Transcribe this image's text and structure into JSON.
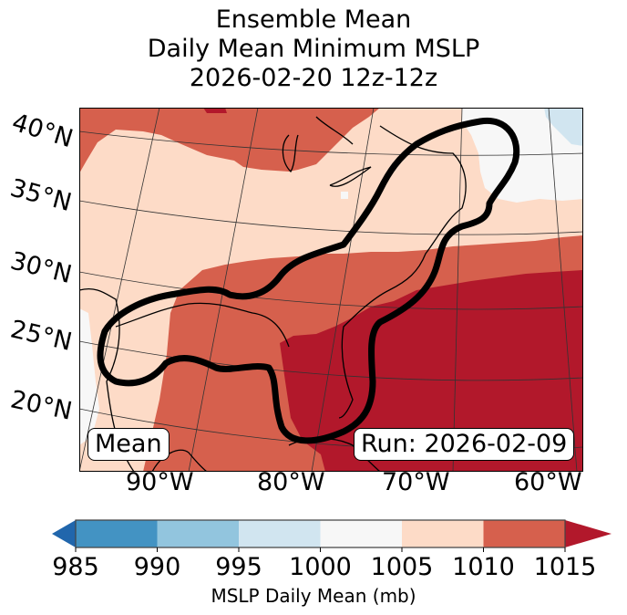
{
  "title": {
    "line1": "Ensemble Mean",
    "line2": "Daily Mean Minimum MSLP",
    "line3": "2026-02-20 12z-12z"
  },
  "map": {
    "lat_labels": [
      "40°N",
      "35°N",
      "30°N",
      "25°N",
      "20°N"
    ],
    "lon_labels": [
      "90°W",
      "80°W",
      "70°W",
      "60°W"
    ],
    "stat_label": "Mean",
    "run_label": "Run: 2026-02-09",
    "region_colors": {
      "1000-1005": "#f7f7f7",
      "995-1000": "#d1e5f0",
      "1005-1010": "#fddbc7",
      "1010-1015": "#d6604d",
      "over-1015": "#b2182b"
    },
    "outline_color": "#000000"
  },
  "colorbar": {
    "label": "MSLP Daily Mean (mb)",
    "ticks": [
      "985",
      "990",
      "995",
      "1000",
      "1005",
      "1010",
      "1015"
    ],
    "bins": [
      {
        "range": "<985",
        "color": "#2166ac"
      },
      {
        "range": "985-990",
        "color": "#4393c3"
      },
      {
        "range": "990-995",
        "color": "#92c5de"
      },
      {
        "range": "995-1000",
        "color": "#d1e5f0"
      },
      {
        "range": "1000-1005",
        "color": "#f7f7f7"
      },
      {
        "range": "1005-1010",
        "color": "#fddbc7"
      },
      {
        "range": "1010-1015",
        "color": "#d6604d"
      },
      {
        "range": ">1015",
        "color": "#b2182b"
      }
    ],
    "extend": "both"
  }
}
